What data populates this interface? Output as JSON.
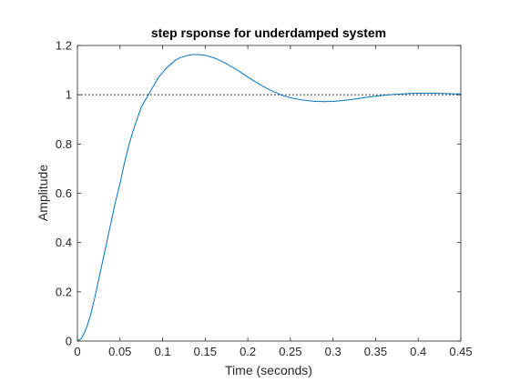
{
  "chart_data": {
    "type": "line",
    "title": "step rsponse for underdamped system",
    "xlabel": "Time (seconds)",
    "ylabel": "Amplitude",
    "xlim": [
      0,
      0.45
    ],
    "ylim": [
      0,
      1.2
    ],
    "xticks": [
      0,
      0.05,
      0.1,
      0.15,
      0.2,
      0.25,
      0.3,
      0.35,
      0.4,
      0.45
    ],
    "xtick_labels": [
      "0",
      "0.05",
      "0.1",
      "0.15",
      "0.2",
      "0.25",
      "0.3",
      "0.35",
      "0.4",
      "0.45"
    ],
    "yticks": [
      0,
      0.2,
      0.4,
      0.6,
      0.8,
      1.0,
      1.2
    ],
    "ytick_labels": [
      "0",
      "0.2",
      "0.4",
      "0.6",
      "0.8",
      "1",
      "1.2"
    ],
    "grid": false,
    "reference_line": {
      "y": 1.0,
      "style": "dotted",
      "color": "#000000"
    },
    "series": [
      {
        "color": "#0072bd",
        "x": [
          0,
          0.005,
          0.01,
          0.015,
          0.02,
          0.025,
          0.03,
          0.035,
          0.04,
          0.045,
          0.05,
          0.055,
          0.06,
          0.065,
          0.07,
          0.075,
          0.08,
          0.085,
          0.09,
          0.095,
          0.1,
          0.105,
          0.11,
          0.115,
          0.12,
          0.125,
          0.13,
          0.135,
          0.14,
          0.145,
          0.15,
          0.155,
          0.16,
          0.165,
          0.17,
          0.175,
          0.18,
          0.185,
          0.19,
          0.195,
          0.2,
          0.21,
          0.22,
          0.23,
          0.24,
          0.25,
          0.26,
          0.27,
          0.28,
          0.29,
          0.3,
          0.31,
          0.32,
          0.33,
          0.34,
          0.35,
          0.36,
          0.37,
          0.38,
          0.39,
          0.4,
          0.41,
          0.42,
          0.43,
          0.44,
          0.45
        ],
        "y": [
          0,
          0.012,
          0.047,
          0.1,
          0.17,
          0.25,
          0.33,
          0.41,
          0.49,
          0.57,
          0.64,
          0.72,
          0.79,
          0.85,
          0.9,
          0.95,
          0.98,
          1.01,
          1.04,
          1.07,
          1.09,
          1.11,
          1.125,
          1.14,
          1.15,
          1.155,
          1.16,
          1.163,
          1.163,
          1.162,
          1.16,
          1.155,
          1.15,
          1.143,
          1.135,
          1.126,
          1.116,
          1.106,
          1.095,
          1.083,
          1.072,
          1.05,
          1.03,
          1.013,
          0.998,
          0.988,
          0.981,
          0.976,
          0.973,
          0.972,
          0.973,
          0.976,
          0.98,
          0.985,
          0.99,
          0.994,
          0.998,
          1.001,
          1.003,
          1.005,
          1.006,
          1.006,
          1.006,
          1.005,
          1.004,
          1.003
        ]
      }
    ]
  }
}
